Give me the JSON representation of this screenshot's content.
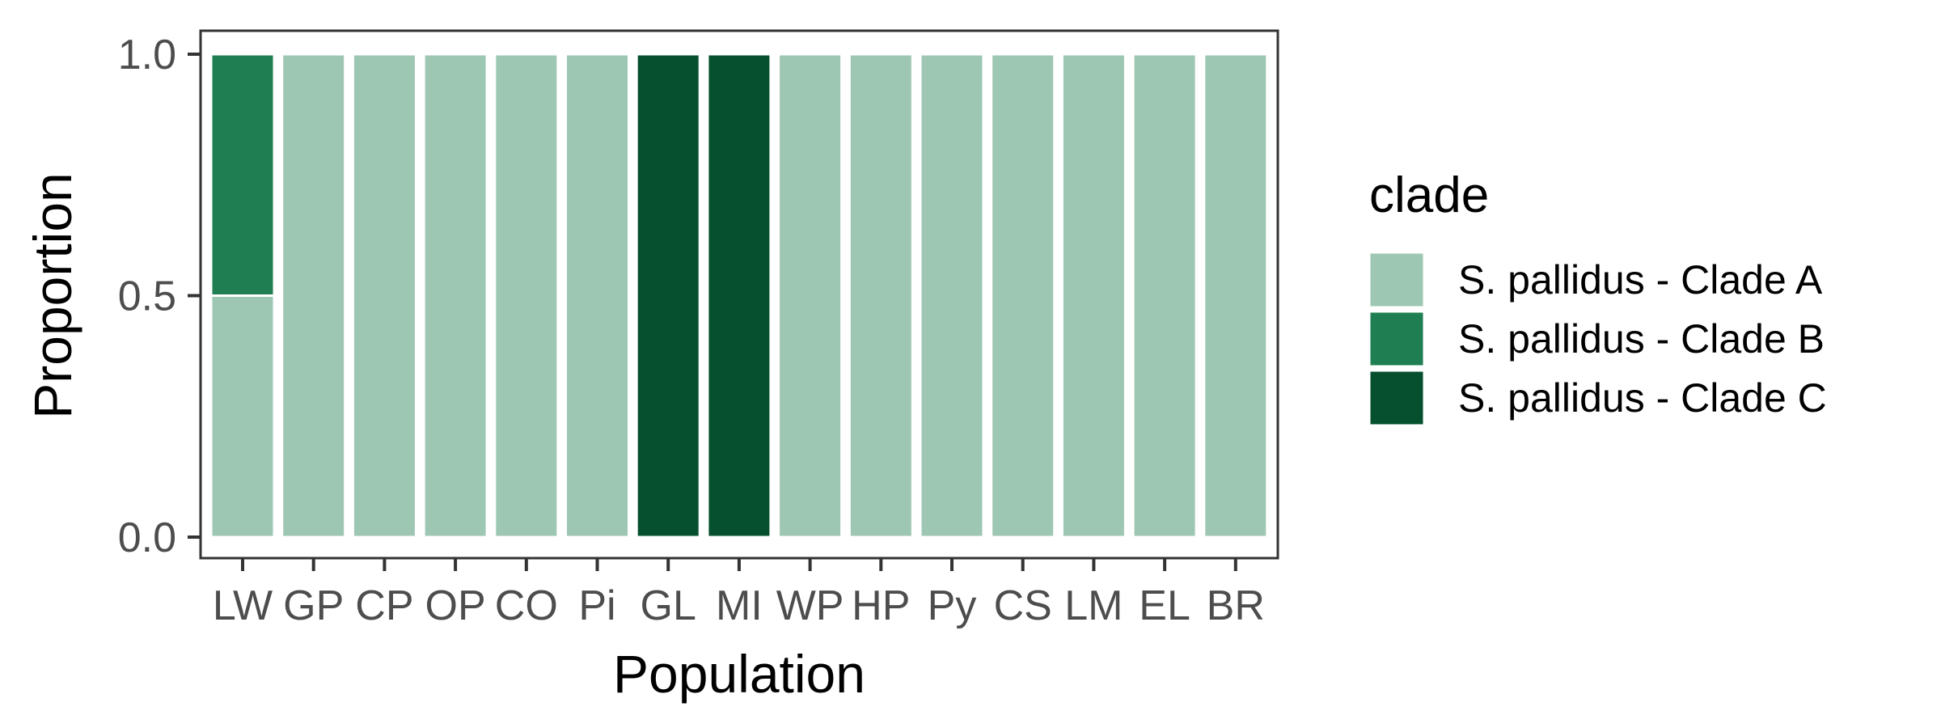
{
  "chart_data": {
    "type": "bar",
    "stacked": true,
    "xlabel": "Population",
    "ylabel": "Proportion",
    "ylim": [
      0,
      1
    ],
    "yticks": [
      "0.0",
      "0.5",
      "1.0"
    ],
    "ytick_values": [
      0,
      0.5,
      1.0
    ],
    "categories": [
      "LW",
      "GP",
      "CP",
      "OP",
      "CO",
      "Pi",
      "GL",
      "MI",
      "WP",
      "HP",
      "Py",
      "CS",
      "LM",
      "EL",
      "BR"
    ],
    "legend_title": "clade",
    "legend_position": "right",
    "grid": false,
    "series": [
      {
        "name": "S. pallidus - Clade A",
        "color": "#9ec7b3",
        "values": [
          0.5,
          1,
          1,
          1,
          1,
          1,
          0,
          0,
          1,
          1,
          1,
          1,
          1,
          1,
          1
        ]
      },
      {
        "name": "S. pallidus - Clade B",
        "color": "#207f52",
        "values": [
          0.5,
          0,
          0,
          0,
          0,
          0,
          0,
          0,
          0,
          0,
          0,
          0,
          0,
          0,
          0
        ]
      },
      {
        "name": "S. pallidus - Clade C",
        "color": "#06502f",
        "values": [
          0,
          0,
          0,
          0,
          0,
          0,
          1,
          1,
          0,
          0,
          0,
          0,
          0,
          0,
          0
        ]
      }
    ]
  }
}
